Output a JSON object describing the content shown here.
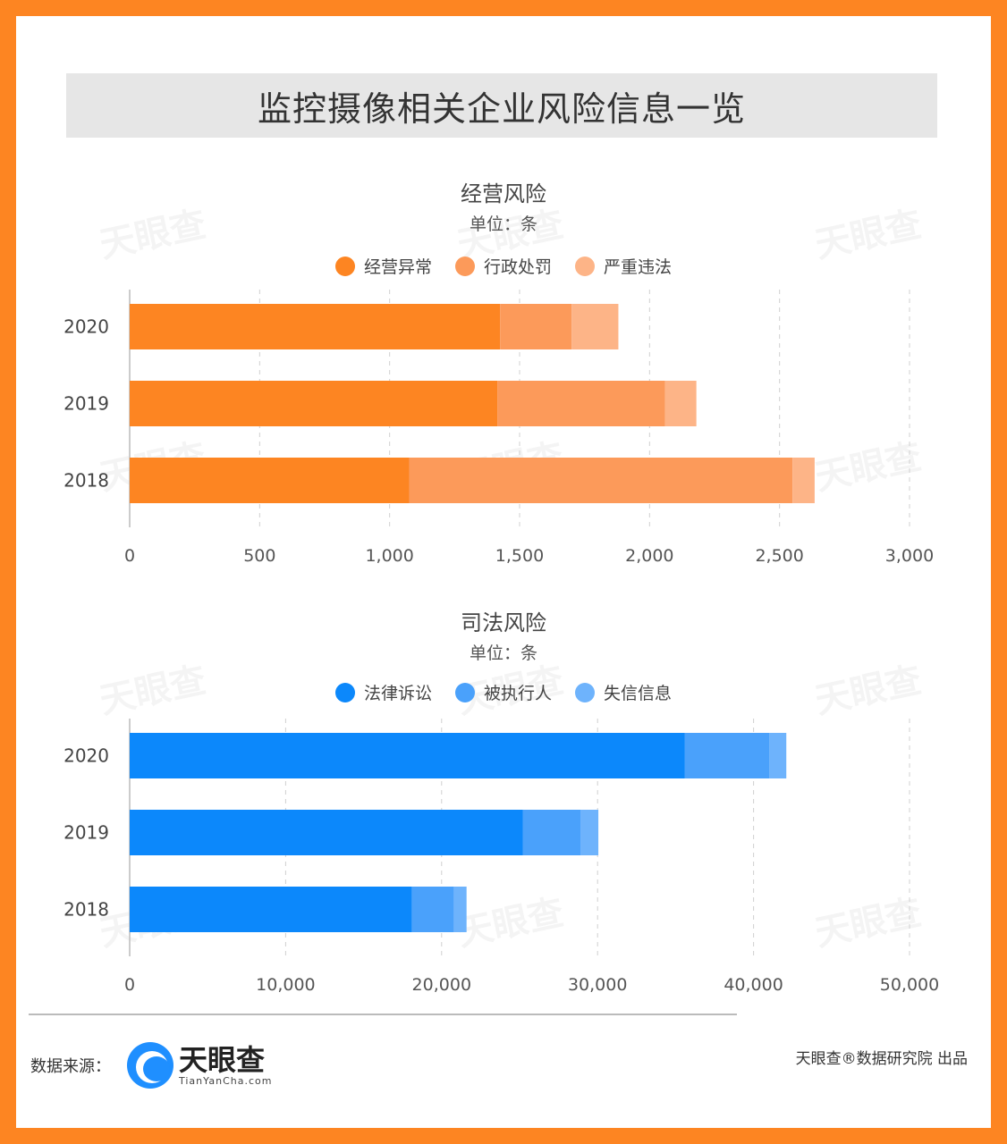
{
  "title": "监控摄像相关企业风险信息一览",
  "charts": [
    {
      "title": "经营风险",
      "unit": "单位：条",
      "legend": [
        {
          "name": "经营异常",
          "color": "#fd8522"
        },
        {
          "name": "行政处罚",
          "color": "#fc9a5a"
        },
        {
          "name": "严重违法",
          "color": "#fdb487"
        }
      ]
    },
    {
      "title": "司法风险",
      "unit": "单位：条",
      "legend": [
        {
          "name": "法律诉讼",
          "color": "#0c88fb"
        },
        {
          "name": "被执行人",
          "color": "#4aa1fb"
        },
        {
          "name": "失信信息",
          "color": "#6eb3fc"
        }
      ]
    }
  ],
  "chart_data": [
    {
      "type": "bar",
      "orientation": "horizontal",
      "stacked": true,
      "title": "经营风险",
      "unit": "单位：条",
      "categories": [
        "2020",
        "2019",
        "2018"
      ],
      "series": [
        {
          "name": "经营异常",
          "values": [
            1425,
            1415,
            1075
          ],
          "color": "#fd8522"
        },
        {
          "name": "行政处罚",
          "values": [
            275,
            645,
            1475
          ],
          "color": "#fc9a5a"
        },
        {
          "name": "严重违法",
          "values": [
            180,
            120,
            85
          ],
          "color": "#fdb487"
        }
      ],
      "xlim": [
        0,
        3000
      ],
      "xticks": [
        0,
        500,
        1000,
        1500,
        2000,
        2500,
        3000
      ],
      "xtick_labels": [
        "0",
        "500",
        "1,000",
        "1,500",
        "2,000",
        "2,500",
        "3,000"
      ],
      "grid": true,
      "legend_position": "top"
    },
    {
      "type": "bar",
      "orientation": "horizontal",
      "stacked": true,
      "title": "司法风险",
      "unit": "单位：条",
      "categories": [
        "2020",
        "2019",
        "2018"
      ],
      "series": [
        {
          "name": "法律诉讼",
          "values": [
            35600,
            25200,
            18100
          ],
          "color": "#0c88fb"
        },
        {
          "name": "被执行人",
          "values": [
            5400,
            3700,
            2700
          ],
          "color": "#4aa1fb"
        },
        {
          "name": "失信信息",
          "values": [
            1100,
            1150,
            800
          ],
          "color": "#6eb3fc"
        }
      ],
      "xlim": [
        0,
        50000
      ],
      "xticks": [
        0,
        10000,
        20000,
        30000,
        40000,
        50000
      ],
      "xtick_labels": [
        "0",
        "10,000",
        "20,000",
        "30,000",
        "40,000",
        "50,000"
      ],
      "grid": true,
      "legend_position": "top"
    }
  ],
  "watermark": "天眼查",
  "footer": {
    "source_label": "数据来源：",
    "brand_name": "天眼查",
    "brand_sub": "TianYanCha.com",
    "credit": "天眼查®数据研究院 出品"
  }
}
